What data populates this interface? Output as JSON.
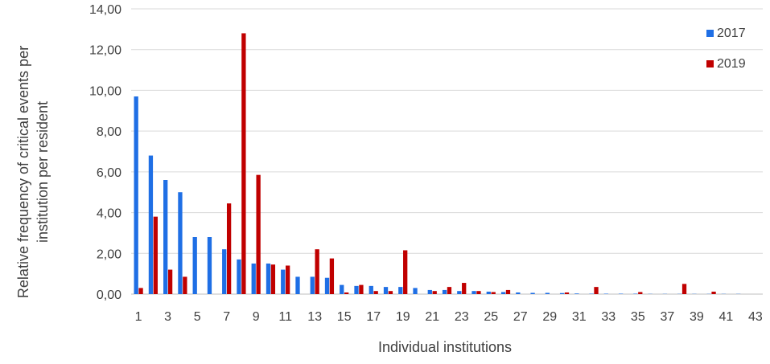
{
  "chart_data": {
    "type": "bar",
    "title": "",
    "xlabel": "Individual institutions",
    "ylabel_lines": [
      "Relative frequency of critical events per",
      "institution per resident"
    ],
    "ylim": [
      0,
      14
    ],
    "y_ticks": [
      "0,00",
      "2,00",
      "4,00",
      "6,00",
      "8,00",
      "10,00",
      "12,00",
      "14,00"
    ],
    "x_tick_labels": [
      "1",
      "3",
      "5",
      "7",
      "9",
      "11",
      "13",
      "15",
      "17",
      "19",
      "21",
      "23",
      "25",
      "27",
      "29",
      "31",
      "33",
      "35",
      "37",
      "39",
      "41",
      "43"
    ],
    "grid": true,
    "legend_position": "top-right",
    "categories": [
      1,
      2,
      3,
      4,
      5,
      6,
      7,
      8,
      9,
      10,
      11,
      12,
      13,
      14,
      15,
      16,
      17,
      18,
      19,
      20,
      21,
      22,
      23,
      24,
      25,
      26,
      27,
      28,
      29,
      30,
      31,
      32,
      33,
      34,
      35,
      36,
      37,
      38,
      39,
      40,
      41,
      42,
      43
    ],
    "series": [
      {
        "name": "2017",
        "color": "#1f6fe5",
        "values": [
          9.7,
          6.8,
          5.6,
          5.0,
          2.8,
          2.8,
          2.2,
          1.7,
          1.5,
          1.5,
          1.2,
          0.85,
          0.85,
          0.8,
          0.45,
          0.4,
          0.4,
          0.35,
          0.35,
          0.3,
          0.2,
          0.2,
          0.15,
          0.15,
          0.12,
          0.1,
          0.08,
          0.06,
          0.06,
          0.05,
          0.03,
          0.02,
          0.02,
          0.02,
          0.02,
          0.01,
          0.01,
          0.01,
          0.01,
          0.01,
          0.01,
          0.01,
          0.0
        ]
      },
      {
        "name": "2019",
        "color": "#c00000",
        "values": [
          0.3,
          3.8,
          1.2,
          0.85,
          0.0,
          0.0,
          4.45,
          12.8,
          5.85,
          1.45,
          1.4,
          0.0,
          2.2,
          1.75,
          0.08,
          0.45,
          0.15,
          0.15,
          2.15,
          0.0,
          0.15,
          0.35,
          0.55,
          0.15,
          0.1,
          0.2,
          0.0,
          0.0,
          0.0,
          0.08,
          0.0,
          0.35,
          0.0,
          0.0,
          0.1,
          0.0,
          0.0,
          0.5,
          0.0,
          0.12,
          0.0,
          0.0,
          0.0
        ]
      }
    ]
  }
}
